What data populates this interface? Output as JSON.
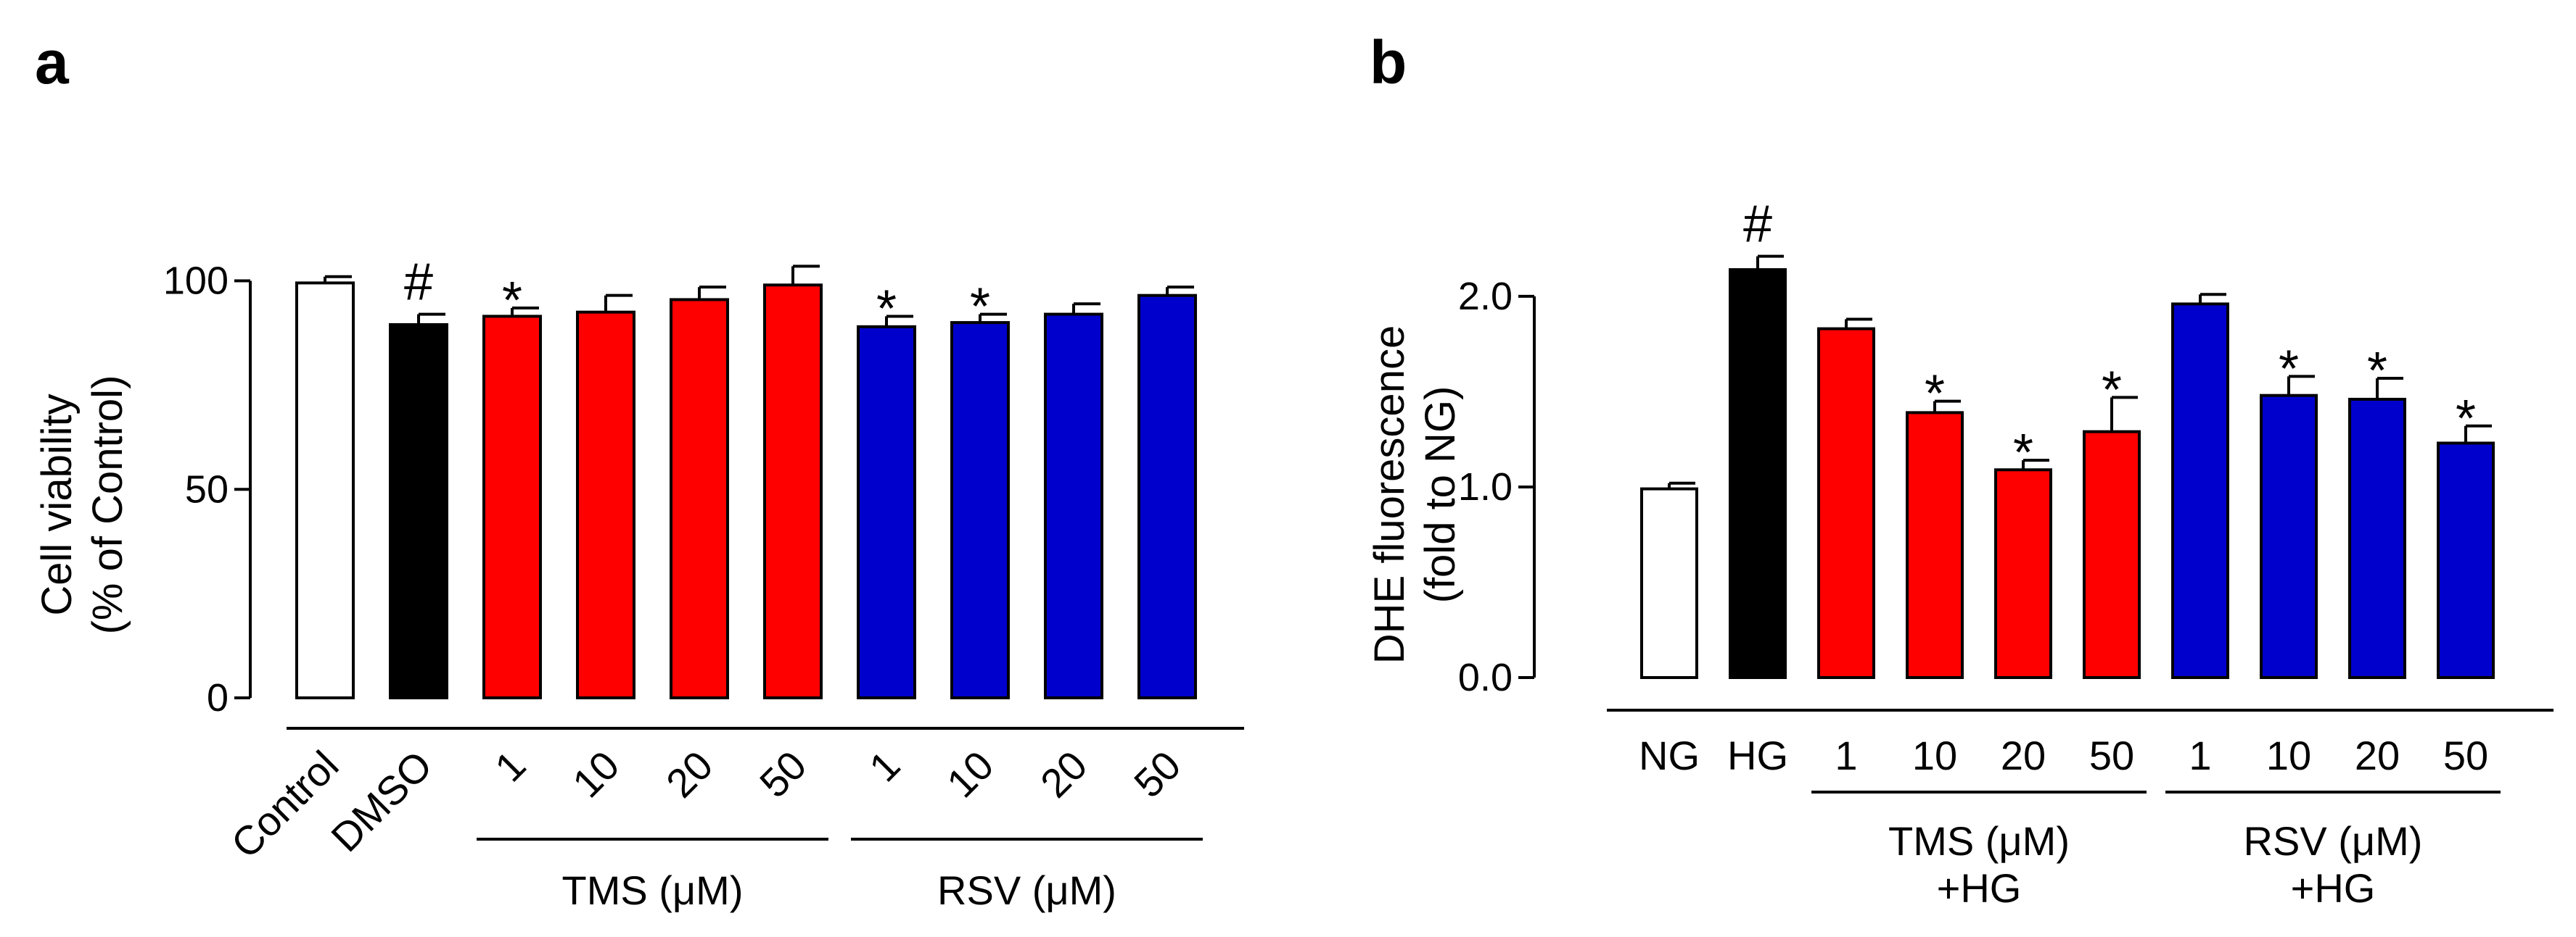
{
  "chart_data": [
    {
      "panel": "a",
      "type": "bar",
      "ylabel": "Cell viability",
      "ylabel2": "(% of Control)",
      "ylim": [
        0,
        110
      ],
      "yticks": [
        0,
        50,
        100
      ],
      "ytick_labels": [
        "0",
        "50",
        "100"
      ],
      "categories": [
        "Control",
        "DMSO",
        "1",
        "10",
        "20",
        "50",
        "1",
        "10",
        "20",
        "50"
      ],
      "values": [
        99.5,
        89.5,
        91.5,
        92.5,
        95.5,
        99,
        89,
        90,
        92,
        96.5
      ],
      "errors": [
        1.5,
        2.5,
        2,
        4,
        3,
        4.5,
        2.5,
        2,
        2.5,
        2
      ],
      "bar_colors": [
        "#ffffff",
        "#000000",
        "#ff0000",
        "#ff0000",
        "#ff0000",
        "#ff0000",
        "#0000cc",
        "#0000cc",
        "#0000cc",
        "#0000cc"
      ],
      "annotations": [
        "",
        "#",
        "*",
        "",
        "",
        "",
        "*",
        "*",
        "",
        ""
      ],
      "groups": [
        {
          "label": "TMS (μM)",
          "line2": "",
          "from": 2,
          "to": 5
        },
        {
          "label": "RSV (μM)",
          "line2": "",
          "from": 6,
          "to": 9
        }
      ]
    },
    {
      "panel": "b",
      "type": "bar",
      "ylabel": "DHE fluorescence",
      "ylabel2": "(fold to NG)",
      "ylim": [
        0,
        2.3
      ],
      "yticks": [
        0,
        1,
        2
      ],
      "ytick_labels": [
        "0.0",
        "1.0",
        "2.0"
      ],
      "categories": [
        "NG",
        "HG",
        "1",
        "10",
        "20",
        "50",
        "1",
        "10",
        "20",
        "50"
      ],
      "values": [
        0.99,
        2.14,
        1.83,
        1.39,
        1.09,
        1.29,
        1.96,
        1.48,
        1.46,
        1.23
      ],
      "errors": [
        0.03,
        0.07,
        0.05,
        0.06,
        0.05,
        0.18,
        0.05,
        0.1,
        0.11,
        0.09
      ],
      "bar_colors": [
        "#ffffff",
        "#000000",
        "#ff0000",
        "#ff0000",
        "#ff0000",
        "#ff0000",
        "#0000cc",
        "#0000cc",
        "#0000cc",
        "#0000cc"
      ],
      "annotations": [
        "",
        "#",
        "",
        "*",
        "*",
        "*",
        "",
        "*",
        "*",
        "*"
      ],
      "groups": [
        {
          "label": "TMS (μM)",
          "line2": "+HG",
          "from": 2,
          "to": 5
        },
        {
          "label": "RSV (μM)",
          "line2": "+HG",
          "from": 6,
          "to": 9
        }
      ]
    }
  ]
}
